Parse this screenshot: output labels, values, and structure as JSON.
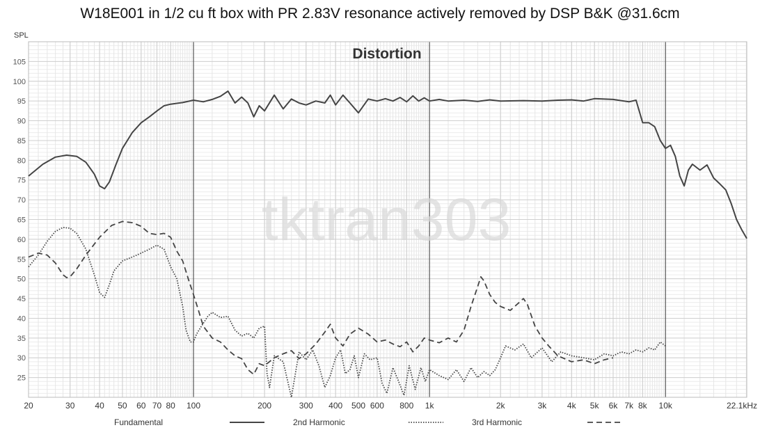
{
  "chart_data": {
    "type": "line",
    "title": "W18E001 in 1/2 cu ft box with PR 2.83V resonance actively removed by DSP B&K @31.6cm",
    "subtitle": "Distortion",
    "watermark": "tktran303",
    "ylabel": "SPL",
    "xscale": "log",
    "xlim": [
      20,
      22100
    ],
    "ylim": [
      20,
      110
    ],
    "yticks": [
      25,
      30,
      35,
      40,
      45,
      50,
      55,
      60,
      65,
      70,
      75,
      80,
      85,
      90,
      95,
      100,
      105
    ],
    "xticks": [
      {
        "v": 20,
        "label": "20"
      },
      {
        "v": 30,
        "label": "30"
      },
      {
        "v": 40,
        "label": "40"
      },
      {
        "v": 50,
        "label": "50"
      },
      {
        "v": 60,
        "label": "60"
      },
      {
        "v": 70,
        "label": "70"
      },
      {
        "v": 80,
        "label": "80"
      },
      {
        "v": 100,
        "label": "100"
      },
      {
        "v": 200,
        "label": "200"
      },
      {
        "v": 300,
        "label": "300"
      },
      {
        "v": 400,
        "label": "400"
      },
      {
        "v": 500,
        "label": "500"
      },
      {
        "v": 600,
        "label": "600"
      },
      {
        "v": 800,
        "label": "800"
      },
      {
        "v": 1000,
        "label": "1k"
      },
      {
        "v": 2000,
        "label": "2k"
      },
      {
        "v": 3000,
        "label": "3k"
      },
      {
        "v": 4000,
        "label": "4k"
      },
      {
        "v": 5000,
        "label": "5k"
      },
      {
        "v": 6000,
        "label": "6k"
      },
      {
        "v": 7000,
        "label": "7k"
      },
      {
        "v": 8000,
        "label": "8k"
      },
      {
        "v": 10000,
        "label": "10k"
      },
      {
        "v": 22100,
        "label": "22.1kHz"
      }
    ],
    "grid": true,
    "legend_position": "bottom",
    "series": [
      {
        "name": "Fundamental",
        "style": "solid",
        "color": "#444444",
        "points": [
          [
            20,
            76
          ],
          [
            23,
            79
          ],
          [
            26,
            80.8
          ],
          [
            29,
            81.3
          ],
          [
            32,
            81
          ],
          [
            35,
            79.5
          ],
          [
            38,
            76.5
          ],
          [
            40,
            73.5
          ],
          [
            42,
            72.8
          ],
          [
            44,
            74.5
          ],
          [
            47,
            79
          ],
          [
            50,
            83
          ],
          [
            55,
            87
          ],
          [
            60,
            89.5
          ],
          [
            65,
            91
          ],
          [
            70,
            92.5
          ],
          [
            75,
            93.8
          ],
          [
            80,
            94.2
          ],
          [
            90,
            94.6
          ],
          [
            100,
            95.2
          ],
          [
            110,
            94.8
          ],
          [
            120,
            95.4
          ],
          [
            130,
            96.2
          ],
          [
            140,
            97.5
          ],
          [
            150,
            94.5
          ],
          [
            160,
            96
          ],
          [
            170,
            94.5
          ],
          [
            180,
            91
          ],
          [
            190,
            93.8
          ],
          [
            200,
            92.5
          ],
          [
            220,
            96.5
          ],
          [
            240,
            93
          ],
          [
            260,
            95.5
          ],
          [
            280,
            94.5
          ],
          [
            300,
            94
          ],
          [
            330,
            95
          ],
          [
            360,
            94.5
          ],
          [
            380,
            96.5
          ],
          [
            400,
            94
          ],
          [
            430,
            96.5
          ],
          [
            460,
            94.5
          ],
          [
            500,
            92
          ],
          [
            550,
            95.5
          ],
          [
            600,
            95
          ],
          [
            650,
            95.6
          ],
          [
            700,
            95
          ],
          [
            750,
            95.9
          ],
          [
            800,
            94.8
          ],
          [
            850,
            96.3
          ],
          [
            900,
            95
          ],
          [
            950,
            95.8
          ],
          [
            1000,
            95
          ],
          [
            1100,
            95.4
          ],
          [
            1200,
            95
          ],
          [
            1400,
            95.2
          ],
          [
            1600,
            94.9
          ],
          [
            1800,
            95.3
          ],
          [
            2000,
            95
          ],
          [
            2500,
            95.1
          ],
          [
            3000,
            95
          ],
          [
            3500,
            95.2
          ],
          [
            4000,
            95.3
          ],
          [
            4500,
            95
          ],
          [
            5000,
            95.6
          ],
          [
            6000,
            95.4
          ],
          [
            7000,
            94.8
          ],
          [
            7500,
            95.2
          ],
          [
            8000,
            89.5
          ],
          [
            8500,
            89.5
          ],
          [
            9000,
            88.5
          ],
          [
            9500,
            85
          ],
          [
            10000,
            83
          ],
          [
            10500,
            83.8
          ],
          [
            11000,
            81
          ],
          [
            11500,
            76
          ],
          [
            12000,
            73.5
          ],
          [
            12500,
            77.5
          ],
          [
            13000,
            79
          ],
          [
            14000,
            77.5
          ],
          [
            15000,
            78.8
          ],
          [
            16000,
            75.5
          ],
          [
            17000,
            74
          ],
          [
            18000,
            72.5
          ],
          [
            19000,
            69
          ],
          [
            20000,
            65
          ],
          [
            21000,
            62.5
          ],
          [
            22100,
            60.2
          ]
        ]
      },
      {
        "name": "2nd Harmonic",
        "style": "dotted",
        "color": "#444444",
        "points": [
          [
            20,
            53
          ],
          [
            22,
            56
          ],
          [
            24,
            59.5
          ],
          [
            26,
            62
          ],
          [
            28,
            63
          ],
          [
            30,
            62.8
          ],
          [
            32,
            61.5
          ],
          [
            35,
            57.5
          ],
          [
            38,
            51
          ],
          [
            40,
            46.5
          ],
          [
            42,
            45.3
          ],
          [
            44,
            48.5
          ],
          [
            46,
            52
          ],
          [
            50,
            54.5
          ],
          [
            55,
            55.5
          ],
          [
            60,
            56.5
          ],
          [
            65,
            57.5
          ],
          [
            70,
            58.5
          ],
          [
            75,
            57.5
          ],
          [
            80,
            53
          ],
          [
            85,
            50
          ],
          [
            90,
            43
          ],
          [
            93,
            37
          ],
          [
            97,
            34
          ],
          [
            100,
            34
          ],
          [
            103,
            36
          ],
          [
            108,
            38
          ],
          [
            115,
            40.5
          ],
          [
            120,
            41.5
          ],
          [
            130,
            40.2
          ],
          [
            140,
            40.5
          ],
          [
            150,
            37
          ],
          [
            160,
            35.5
          ],
          [
            170,
            36.2
          ],
          [
            180,
            35
          ],
          [
            190,
            37.5
          ],
          [
            200,
            38
          ],
          [
            205,
            26
          ],
          [
            210,
            22.5
          ],
          [
            220,
            30.5
          ],
          [
            240,
            29
          ],
          [
            260,
            20
          ],
          [
            280,
            31.5
          ],
          [
            300,
            29.5
          ],
          [
            320,
            32
          ],
          [
            340,
            28
          ],
          [
            360,
            22.5
          ],
          [
            380,
            25.5
          ],
          [
            400,
            30
          ],
          [
            420,
            32
          ],
          [
            440,
            26
          ],
          [
            460,
            27
          ],
          [
            480,
            30.5
          ],
          [
            500,
            25
          ],
          [
            530,
            31
          ],
          [
            560,
            29.5
          ],
          [
            600,
            30
          ],
          [
            630,
            23.5
          ],
          [
            660,
            21
          ],
          [
            700,
            27.5
          ],
          [
            740,
            24
          ],
          [
            780,
            20.5
          ],
          [
            820,
            28
          ],
          [
            870,
            22
          ],
          [
            920,
            27.5
          ],
          [
            960,
            24
          ],
          [
            1000,
            27
          ],
          [
            1100,
            25.5
          ],
          [
            1200,
            24.5
          ],
          [
            1300,
            27
          ],
          [
            1400,
            24
          ],
          [
            1500,
            27.5
          ],
          [
            1600,
            25
          ],
          [
            1700,
            26.5
          ],
          [
            1800,
            25.5
          ],
          [
            1900,
            27
          ],
          [
            2000,
            30
          ],
          [
            2100,
            33
          ],
          [
            2300,
            32
          ],
          [
            2500,
            33.5
          ],
          [
            2700,
            30
          ],
          [
            3000,
            32.5
          ],
          [
            3300,
            29
          ],
          [
            3600,
            31.5
          ],
          [
            4000,
            30.5
          ],
          [
            4500,
            30
          ],
          [
            5000,
            29.5
          ],
          [
            5500,
            31
          ],
          [
            6000,
            30.5
          ],
          [
            6500,
            31.5
          ],
          [
            7000,
            31
          ],
          [
            7500,
            32
          ],
          [
            8000,
            31.5
          ],
          [
            8500,
            32.5
          ],
          [
            9000,
            32
          ],
          [
            9500,
            34
          ],
          [
            10000,
            33
          ]
        ]
      },
      {
        "name": "3rd Harmonic",
        "style": "dashed",
        "color": "#444444",
        "points": [
          [
            20,
            55.5
          ],
          [
            22,
            56.5
          ],
          [
            24,
            56
          ],
          [
            26,
            54
          ],
          [
            28,
            51
          ],
          [
            29,
            50.3
          ],
          [
            30,
            50.5
          ],
          [
            32,
            52.5
          ],
          [
            35,
            56
          ],
          [
            40,
            60.5
          ],
          [
            45,
            63.5
          ],
          [
            50,
            64.5
          ],
          [
            55,
            64.2
          ],
          [
            60,
            63.3
          ],
          [
            65,
            61.5
          ],
          [
            70,
            61.2
          ],
          [
            75,
            61.5
          ],
          [
            80,
            60.5
          ],
          [
            85,
            57
          ],
          [
            90,
            54.5
          ],
          [
            95,
            50
          ],
          [
            100,
            46
          ],
          [
            105,
            42
          ],
          [
            110,
            38
          ],
          [
            120,
            35
          ],
          [
            130,
            34
          ],
          [
            140,
            32
          ],
          [
            150,
            30.5
          ],
          [
            160,
            29.8
          ],
          [
            170,
            27
          ],
          [
            180,
            25.8
          ],
          [
            190,
            28.5
          ],
          [
            200,
            28
          ],
          [
            220,
            30
          ],
          [
            240,
            31
          ],
          [
            260,
            31.8
          ],
          [
            280,
            29.8
          ],
          [
            300,
            31
          ],
          [
            330,
            33.5
          ],
          [
            360,
            36.5
          ],
          [
            380,
            38.5
          ],
          [
            400,
            35
          ],
          [
            430,
            33
          ],
          [
            460,
            36
          ],
          [
            500,
            37.5
          ],
          [
            550,
            36
          ],
          [
            600,
            34
          ],
          [
            650,
            34.5
          ],
          [
            700,
            33.5
          ],
          [
            750,
            32.8
          ],
          [
            800,
            34
          ],
          [
            850,
            31.5
          ],
          [
            900,
            33
          ],
          [
            950,
            35
          ],
          [
            1000,
            34.5
          ],
          [
            1100,
            33.8
          ],
          [
            1200,
            35
          ],
          [
            1300,
            34
          ],
          [
            1400,
            37
          ],
          [
            1500,
            43
          ],
          [
            1600,
            48
          ],
          [
            1650,
            50.5
          ],
          [
            1700,
            49.5
          ],
          [
            1800,
            46
          ],
          [
            1900,
            44
          ],
          [
            2000,
            43
          ],
          [
            2200,
            42
          ],
          [
            2400,
            44
          ],
          [
            2500,
            45
          ],
          [
            2600,
            43.5
          ],
          [
            2800,
            38
          ],
          [
            3000,
            35
          ],
          [
            3200,
            33
          ],
          [
            3500,
            30.5
          ],
          [
            4000,
            29
          ],
          [
            4500,
            29.5
          ],
          [
            5000,
            28.5
          ],
          [
            5500,
            29.5
          ],
          [
            6000,
            30
          ]
        ]
      }
    ],
    "legend": [
      {
        "label": "Fundamental",
        "style": "solid"
      },
      {
        "label": "2nd Harmonic",
        "style": "dotted"
      },
      {
        "label": "3rd Harmonic",
        "style": "dashed"
      }
    ]
  }
}
